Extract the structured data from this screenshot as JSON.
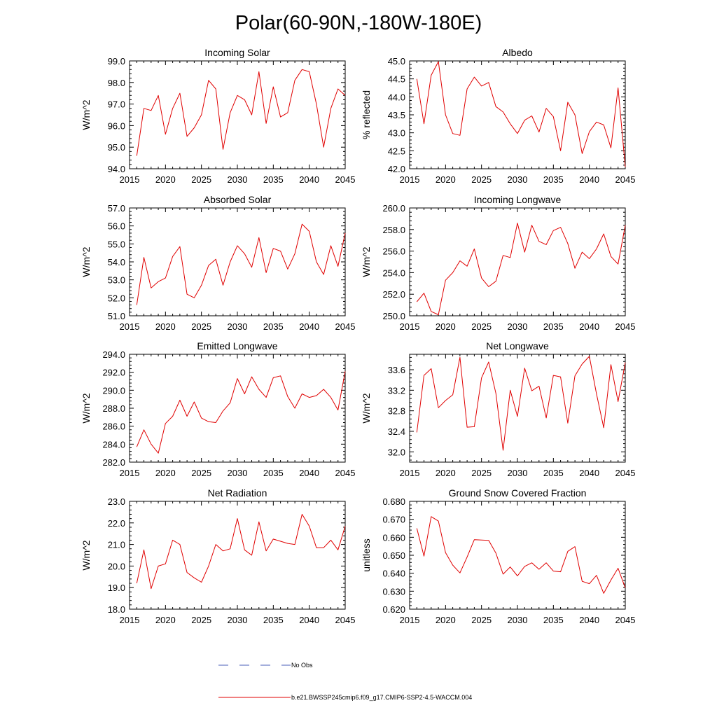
{
  "page_title": "Polar(60-90N,-180W-180E)",
  "colors": {
    "model_line": "#e00000",
    "obs_line": "#4a5fb8",
    "axis": "#000000"
  },
  "legend": {
    "obs_label": "No Obs",
    "model_label": "b.e21.BWSSP245cmip6.f09_g17.CMIP6-SSP2-4.5-WACCM.004"
  },
  "chart_data": [
    {
      "type": "line",
      "title": "Incoming Solar",
      "xlabel": "",
      "ylabel": "W/m^2",
      "xlim": [
        2015,
        2045
      ],
      "ylim": [
        94.0,
        99.0
      ],
      "yticks": [
        94.0,
        95.0,
        96.0,
        97.0,
        98.0,
        99.0
      ],
      "ytick_labels": [
        "94.0",
        "95.0",
        "96.0",
        "97.0",
        "98.0",
        "99.0"
      ],
      "xticks": [
        2015,
        2020,
        2025,
        2030,
        2035,
        2040,
        2045
      ],
      "xtick_labels": [
        "2015",
        "2020",
        "2025",
        "2030",
        "2035",
        "2040",
        "2045"
      ],
      "series": [
        {
          "name": "b.e21.BWSSP245cmip6.f09_g17.CMIP6-SSP2-4.5-WACCM.004",
          "x": [
            2016,
            2017,
            2018,
            2019,
            2020,
            2021,
            2022,
            2023,
            2024,
            2025,
            2026,
            2027,
            2028,
            2029,
            2030,
            2031,
            2032,
            2033,
            2034,
            2035,
            2036,
            2037,
            2038,
            2039,
            2040,
            2041,
            2042,
            2043,
            2044,
            2045
          ],
          "values": [
            94.6,
            96.8,
            96.7,
            97.4,
            95.6,
            96.8,
            97.5,
            95.5,
            95.9,
            96.5,
            98.1,
            97.7,
            94.9,
            96.6,
            97.4,
            97.2,
            96.5,
            98.5,
            96.1,
            97.8,
            96.4,
            96.6,
            98.1,
            98.6,
            98.5,
            97.0,
            95.0,
            96.8,
            97.7,
            97.4
          ]
        }
      ]
    },
    {
      "type": "line",
      "title": "Albedo",
      "xlabel": "",
      "ylabel": "% reflected",
      "xlim": [
        2015,
        2045
      ],
      "ylim": [
        42.0,
        45.0
      ],
      "yticks": [
        42.0,
        42.5,
        43.0,
        43.5,
        44.0,
        44.5,
        45.0
      ],
      "ytick_labels": [
        "42.0",
        "42.5",
        "43.0",
        "43.5",
        "44.0",
        "44.5",
        "45.0"
      ],
      "xticks": [
        2015,
        2020,
        2025,
        2030,
        2035,
        2040,
        2045
      ],
      "xtick_labels": [
        "2015",
        "2020",
        "2025",
        "2030",
        "2035",
        "2040",
        "2045"
      ],
      "series": [
        {
          "name": "b.e21.BWSSP245cmip6.f09_g17.CMIP6-SSP2-4.5-WACCM.004",
          "x": [
            2016,
            2017,
            2018,
            2019,
            2020,
            2021,
            2022,
            2023,
            2024,
            2025,
            2026,
            2027,
            2028,
            2029,
            2030,
            2031,
            2032,
            2033,
            2034,
            2035,
            2036,
            2037,
            2038,
            2039,
            2040,
            2041,
            2042,
            2043,
            2044,
            2045
          ],
          "values": [
            44.5,
            43.25,
            44.6,
            44.98,
            43.5,
            42.98,
            42.93,
            44.22,
            44.55,
            44.3,
            44.4,
            43.73,
            43.58,
            43.25,
            42.98,
            43.35,
            43.47,
            43.02,
            43.68,
            43.45,
            42.5,
            43.85,
            43.5,
            42.42,
            43.03,
            43.3,
            43.22,
            42.58,
            44.25,
            42.05
          ]
        }
      ]
    },
    {
      "type": "line",
      "title": "Absorbed Solar",
      "xlabel": "",
      "ylabel": "W/m^2",
      "xlim": [
        2015,
        2045
      ],
      "ylim": [
        51.0,
        57.0
      ],
      "yticks": [
        51.0,
        52.0,
        53.0,
        54.0,
        55.0,
        56.0,
        57.0
      ],
      "ytick_labels": [
        "51.0",
        "52.0",
        "53.0",
        "54.0",
        "55.0",
        "56.0",
        "57.0"
      ],
      "xticks": [
        2015,
        2020,
        2025,
        2030,
        2035,
        2040,
        2045
      ],
      "xtick_labels": [
        "2015",
        "2020",
        "2025",
        "2030",
        "2035",
        "2040",
        "2045"
      ],
      "series": [
        {
          "name": "b.e21.BWSSP245cmip6.f09_g17.CMIP6-SSP2-4.5-WACCM.004",
          "x": [
            2016,
            2017,
            2018,
            2019,
            2020,
            2021,
            2022,
            2023,
            2024,
            2025,
            2026,
            2027,
            2028,
            2029,
            2030,
            2031,
            2032,
            2033,
            2034,
            2035,
            2036,
            2037,
            2038,
            2039,
            2040,
            2041,
            2042,
            2043,
            2044,
            2045
          ],
          "values": [
            51.6,
            54.25,
            52.55,
            52.9,
            53.1,
            54.3,
            54.85,
            52.2,
            52.0,
            52.7,
            53.8,
            54.15,
            52.7,
            54.0,
            54.9,
            54.45,
            53.7,
            55.35,
            53.4,
            54.75,
            54.6,
            53.6,
            54.45,
            56.1,
            55.7,
            54.0,
            53.3,
            54.9,
            53.75,
            55.6
          ]
        }
      ]
    },
    {
      "type": "line",
      "title": "Incoming Longwave",
      "xlabel": "",
      "ylabel": "W/m^2",
      "xlim": [
        2015,
        2045
      ],
      "ylim": [
        250.0,
        260.0
      ],
      "yticks": [
        250.0,
        252.0,
        254.0,
        256.0,
        258.0,
        260.0
      ],
      "ytick_labels": [
        "250.0",
        "252.0",
        "254.0",
        "256.0",
        "258.0",
        "260.0"
      ],
      "xticks": [
        2015,
        2020,
        2025,
        2030,
        2035,
        2040,
        2045
      ],
      "xtick_labels": [
        "2015",
        "2020",
        "2025",
        "2030",
        "2035",
        "2040",
        "2045"
      ],
      "series": [
        {
          "name": "b.e21.BWSSP245cmip6.f09_g17.CMIP6-SSP2-4.5-WACCM.004",
          "x": [
            2016,
            2017,
            2018,
            2019,
            2020,
            2021,
            2022,
            2023,
            2024,
            2025,
            2026,
            2027,
            2028,
            2029,
            2030,
            2031,
            2032,
            2033,
            2034,
            2035,
            2036,
            2037,
            2038,
            2039,
            2040,
            2041,
            2042,
            2043,
            2044,
            2045
          ],
          "values": [
            251.3,
            252.1,
            250.4,
            250.1,
            253.3,
            254.0,
            255.1,
            254.6,
            256.2,
            253.5,
            252.7,
            253.2,
            255.6,
            255.4,
            258.6,
            255.9,
            258.4,
            256.9,
            256.6,
            257.9,
            258.2,
            256.7,
            254.4,
            255.9,
            255.3,
            256.2,
            257.6,
            255.5,
            254.8,
            258.4
          ]
        }
      ]
    },
    {
      "type": "line",
      "title": "Emitted Longwave",
      "xlabel": "",
      "ylabel": "W/m^2",
      "xlim": [
        2015,
        2045
      ],
      "ylim": [
        282.0,
        294.0
      ],
      "yticks": [
        282.0,
        284.0,
        286.0,
        288.0,
        290.0,
        292.0,
        294.0
      ],
      "ytick_labels": [
        "282.0",
        "284.0",
        "286.0",
        "288.0",
        "290.0",
        "292.0",
        "294.0"
      ],
      "xticks": [
        2015,
        2020,
        2025,
        2030,
        2035,
        2040,
        2045
      ],
      "xtick_labels": [
        "2015",
        "2020",
        "2025",
        "2030",
        "2035",
        "2040",
        "2045"
      ],
      "series": [
        {
          "name": "b.e21.BWSSP245cmip6.f09_g17.CMIP6-SSP2-4.5-WACCM.004",
          "x": [
            2016,
            2017,
            2018,
            2019,
            2020,
            2021,
            2022,
            2023,
            2024,
            2025,
            2026,
            2027,
            2028,
            2029,
            2030,
            2031,
            2032,
            2033,
            2034,
            2035,
            2036,
            2037,
            2038,
            2039,
            2040,
            2041,
            2042,
            2043,
            2044,
            2045
          ],
          "values": [
            283.7,
            285.6,
            284.0,
            283.0,
            286.3,
            287.1,
            288.9,
            287.1,
            288.7,
            286.9,
            286.5,
            286.4,
            287.7,
            288.6,
            291.3,
            289.6,
            291.5,
            290.1,
            289.2,
            291.4,
            291.6,
            289.3,
            288.0,
            289.6,
            289.2,
            289.4,
            290.1,
            289.2,
            287.8,
            292.1
          ]
        }
      ]
    },
    {
      "type": "line",
      "title": "Net Longwave",
      "xlabel": "",
      "ylabel": "W/m^2",
      "xlim": [
        2015,
        2045
      ],
      "ylim": [
        31.8,
        33.9
      ],
      "yticks": [
        32.0,
        32.4,
        32.8,
        33.2,
        33.6
      ],
      "ytick_labels": [
        "32.0",
        "32.4",
        "32.8",
        "33.2",
        "33.6"
      ],
      "xticks": [
        2015,
        2020,
        2025,
        2030,
        2035,
        2040,
        2045
      ],
      "xtick_labels": [
        "2015",
        "2020",
        "2025",
        "2030",
        "2035",
        "2040",
        "2045"
      ],
      "series": [
        {
          "name": "b.e21.BWSSP245cmip6.f09_g17.CMIP6-SSP2-4.5-WACCM.004",
          "x": [
            2016,
            2017,
            2018,
            2019,
            2020,
            2021,
            2022,
            2023,
            2024,
            2025,
            2026,
            2027,
            2028,
            2029,
            2030,
            2031,
            2032,
            2033,
            2034,
            2035,
            2036,
            2037,
            2038,
            2039,
            2040,
            2041,
            2042,
            2043,
            2044,
            2045
          ],
          "values": [
            32.38,
            33.49,
            33.62,
            32.86,
            33.0,
            33.11,
            33.84,
            32.48,
            32.49,
            33.44,
            33.75,
            33.14,
            32.03,
            33.2,
            32.69,
            33.63,
            33.19,
            33.28,
            32.66,
            33.49,
            33.46,
            32.56,
            33.48,
            33.71,
            33.86,
            33.13,
            32.47,
            33.7,
            32.98,
            33.74
          ]
        }
      ]
    },
    {
      "type": "line",
      "title": "Net Radiation",
      "xlabel": "",
      "ylabel": "W/m^2",
      "xlim": [
        2015,
        2045
      ],
      "ylim": [
        18.0,
        23.0
      ],
      "yticks": [
        18.0,
        19.0,
        20.0,
        21.0,
        22.0,
        23.0
      ],
      "ytick_labels": [
        "18.0",
        "19.0",
        "20.0",
        "21.0",
        "22.0",
        "23.0"
      ],
      "xticks": [
        2015,
        2020,
        2025,
        2030,
        2035,
        2040,
        2045
      ],
      "xtick_labels": [
        "2015",
        "2020",
        "2025",
        "2030",
        "2035",
        "2040",
        "2045"
      ],
      "series": [
        {
          "name": "b.e21.BWSSP245cmip6.f09_g17.CMIP6-SSP2-4.5-WACCM.004",
          "x": [
            2016,
            2017,
            2018,
            2019,
            2020,
            2021,
            2022,
            2023,
            2024,
            2025,
            2026,
            2027,
            2028,
            2029,
            2030,
            2031,
            2032,
            2033,
            2034,
            2035,
            2036,
            2037,
            2038,
            2039,
            2040,
            2041,
            2042,
            2043,
            2044,
            2045
          ],
          "values": [
            19.2,
            20.75,
            18.95,
            20.0,
            20.1,
            21.2,
            21.0,
            19.7,
            19.45,
            19.25,
            20.0,
            21.0,
            20.7,
            20.8,
            22.2,
            20.75,
            20.5,
            22.05,
            20.7,
            21.25,
            21.15,
            21.05,
            21.0,
            22.4,
            21.85,
            20.85,
            20.85,
            21.2,
            20.75,
            21.85
          ]
        }
      ]
    },
    {
      "type": "line",
      "title": "Ground Snow Covered Fraction",
      "xlabel": "",
      "ylabel": "unitless",
      "xlim": [
        2015,
        2045
      ],
      "ylim": [
        0.62,
        0.68
      ],
      "yticks": [
        0.62,
        0.63,
        0.64,
        0.65,
        0.66,
        0.67,
        0.68
      ],
      "ytick_labels": [
        "0.620",
        "0.630",
        "0.640",
        "0.650",
        "0.660",
        "0.670",
        "0.680"
      ],
      "xticks": [
        2015,
        2020,
        2025,
        2030,
        2035,
        2040,
        2045
      ],
      "xtick_labels": [
        "2015",
        "2020",
        "2025",
        "2030",
        "2035",
        "2040",
        "2045"
      ],
      "series": [
        {
          "name": "b.e21.BWSSP245cmip6.f09_g17.CMIP6-SSP2-4.5-WACCM.004",
          "x": [
            2016,
            2017,
            2018,
            2019,
            2020,
            2021,
            2022,
            2023,
            2024,
            2025,
            2026,
            2027,
            2028,
            2029,
            2030,
            2031,
            2032,
            2033,
            2034,
            2035,
            2036,
            2037,
            2038,
            2039,
            2040,
            2041,
            2042,
            2043,
            2044,
            2045
          ],
          "values": [
            0.665,
            0.6495,
            0.6715,
            0.669,
            0.6515,
            0.6445,
            0.6402,
            0.649,
            0.6587,
            0.6585,
            0.6583,
            0.6512,
            0.6395,
            0.6435,
            0.6385,
            0.6438,
            0.6458,
            0.6422,
            0.6458,
            0.6412,
            0.6408,
            0.6522,
            0.6548,
            0.6355,
            0.6342,
            0.6388,
            0.6288,
            0.6362,
            0.6428,
            0.6318
          ]
        }
      ]
    }
  ]
}
